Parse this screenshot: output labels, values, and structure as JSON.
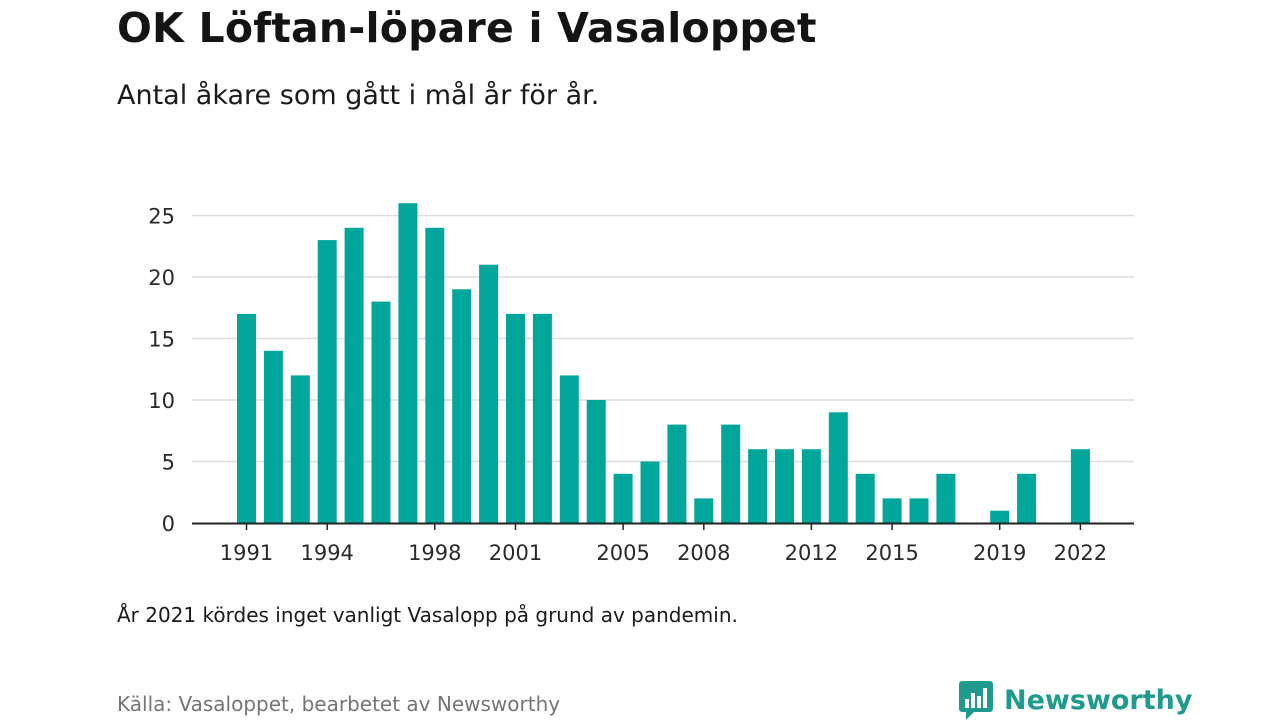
{
  "chart_data": {
    "type": "bar",
    "title": "OK Löftan-löpare i Vasaloppet",
    "subtitle": "Antal åkare som gått i mål år för år.",
    "x": [
      1991,
      1992,
      1993,
      1994,
      1995,
      1996,
      1997,
      1998,
      1999,
      2000,
      2001,
      2002,
      2003,
      2004,
      2005,
      2006,
      2007,
      2008,
      2009,
      2010,
      2011,
      2012,
      2013,
      2014,
      2015,
      2016,
      2017,
      2018,
      2019,
      2020,
      2021,
      2022
    ],
    "values": [
      17,
      14,
      12,
      23,
      24,
      18,
      26,
      24,
      19,
      21,
      17,
      17,
      12,
      10,
      4,
      5,
      8,
      2,
      8,
      6,
      6,
      6,
      9,
      4,
      2,
      2,
      4,
      0,
      1,
      4,
      0,
      6
    ],
    "x_tick_labels": [
      "1991",
      "1994",
      "1998",
      "2001",
      "2005",
      "2008",
      "2012",
      "2015",
      "2019",
      "2022"
    ],
    "y_ticks": [
      0,
      5,
      10,
      15,
      20,
      25
    ],
    "ylim": [
      0,
      27
    ],
    "grid": true,
    "bar_color": "#00a69a"
  },
  "note": "År 2021 kördes inget vanligt Vasalopp på grund av pandemin.",
  "source": "Källa: Vasaloppet, bearbetet av Newsworthy",
  "brand": {
    "name": "Newsworthy",
    "color": "#1e9b8c",
    "icon": "bar-chart-bubble-icon"
  }
}
